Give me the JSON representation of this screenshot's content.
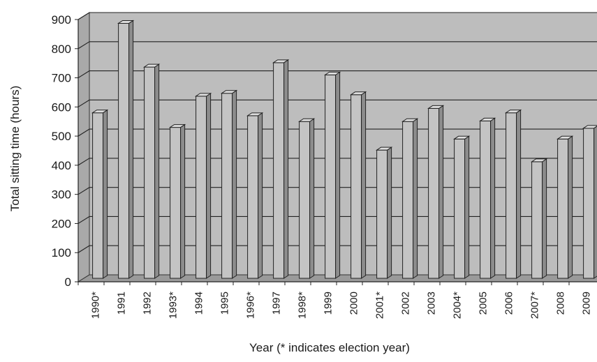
{
  "chart_data": {
    "type": "bar",
    "title": "",
    "xlabel": "Year (* indicates election year)",
    "ylabel": "Total sitting time (hours)",
    "ylim": [
      0,
      900
    ],
    "yticks": [
      0,
      100,
      200,
      300,
      400,
      500,
      600,
      700,
      800,
      900
    ],
    "grid": true,
    "legend": "none",
    "bar_color": "#c4c4c4",
    "wall_color": "#bdbdbd",
    "categories": [
      "1990*",
      "1991",
      "1992",
      "1993*",
      "1994",
      "1995",
      "1996*",
      "1997",
      "1998*",
      "1999",
      "2000",
      "2001*",
      "2002",
      "2003",
      "2004*",
      "2005",
      "2006",
      "2007*",
      "2008",
      "2009"
    ],
    "values": [
      568,
      875,
      725,
      518,
      625,
      635,
      558,
      740,
      538,
      698,
      630,
      440,
      538,
      583,
      478,
      540,
      568,
      400,
      478,
      515
    ]
  }
}
